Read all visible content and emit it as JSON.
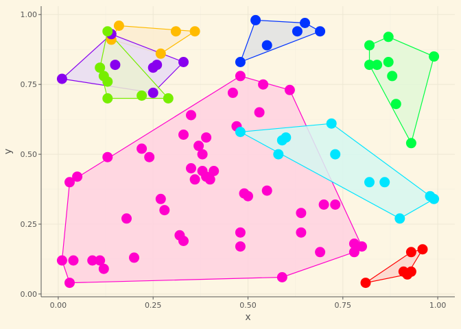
{
  "chart_data": {
    "type": "scatter",
    "title": "",
    "xlabel": "x",
    "ylabel": "y",
    "xlim": [
      -0.045,
      1.045
    ],
    "ylim": [
      -0.01,
      1.03
    ],
    "x_ticks": [
      0,
      0.25,
      0.5,
      0.75,
      1
    ],
    "x_tick_labels": [
      "0.00",
      "0.25",
      "0.50",
      "0.75",
      "1.00"
    ],
    "y_ticks": [
      0,
      0.25,
      0.5,
      0.75,
      1
    ],
    "y_tick_labels": [
      "0.00",
      "0.25",
      "0.50",
      "0.75",
      "1.00"
    ],
    "grid": true,
    "legend": "none",
    "series": [
      {
        "color": "#ff00cc",
        "fill": "#ffd1e0",
        "points": [
          [
            0.01,
            0.12
          ],
          [
            0.03,
            0.04
          ],
          [
            0.03,
            0.4
          ],
          [
            0.04,
            0.12
          ],
          [
            0.05,
            0.42
          ],
          [
            0.09,
            0.12
          ],
          [
            0.11,
            0.12
          ],
          [
            0.12,
            0.09
          ],
          [
            0.13,
            0.49
          ],
          [
            0.18,
            0.27
          ],
          [
            0.2,
            0.13
          ],
          [
            0.22,
            0.52
          ],
          [
            0.24,
            0.49
          ],
          [
            0.27,
            0.34
          ],
          [
            0.28,
            0.3
          ],
          [
            0.32,
            0.21
          ],
          [
            0.33,
            0.19
          ],
          [
            0.33,
            0.57
          ],
          [
            0.35,
            0.45
          ],
          [
            0.35,
            0.64
          ],
          [
            0.36,
            0.41
          ],
          [
            0.37,
            0.53
          ],
          [
            0.38,
            0.44
          ],
          [
            0.38,
            0.5
          ],
          [
            0.39,
            0.56
          ],
          [
            0.39,
            0.42
          ],
          [
            0.4,
            0.41
          ],
          [
            0.41,
            0.44
          ],
          [
            0.46,
            0.72
          ],
          [
            0.47,
            0.6
          ],
          [
            0.48,
            0.17
          ],
          [
            0.48,
            0.22
          ],
          [
            0.48,
            0.78
          ],
          [
            0.49,
            0.36
          ],
          [
            0.5,
            0.35
          ],
          [
            0.53,
            0.65
          ],
          [
            0.54,
            0.75
          ],
          [
            0.55,
            0.37
          ],
          [
            0.59,
            0.06
          ],
          [
            0.61,
            0.73
          ],
          [
            0.64,
            0.29
          ],
          [
            0.64,
            0.22
          ],
          [
            0.69,
            0.15
          ],
          [
            0.7,
            0.32
          ],
          [
            0.73,
            0.32
          ],
          [
            0.78,
            0.18
          ],
          [
            0.78,
            0.15
          ],
          [
            0.8,
            0.17
          ]
        ],
        "hull": [
          [
            0.01,
            0.12
          ],
          [
            0.03,
            0.04
          ],
          [
            0.59,
            0.06
          ],
          [
            0.78,
            0.15
          ],
          [
            0.8,
            0.17
          ],
          [
            0.61,
            0.73
          ],
          [
            0.48,
            0.78
          ],
          [
            0.03,
            0.4
          ]
        ]
      },
      {
        "color": "#00e5ff",
        "fill": "#d6f7f0",
        "points": [
          [
            0.48,
            0.58
          ],
          [
            0.58,
            0.5
          ],
          [
            0.59,
            0.55
          ],
          [
            0.6,
            0.56
          ],
          [
            0.72,
            0.61
          ],
          [
            0.73,
            0.5
          ],
          [
            0.82,
            0.4
          ],
          [
            0.86,
            0.4
          ],
          [
            0.9,
            0.27
          ],
          [
            0.98,
            0.35
          ],
          [
            0.99,
            0.34
          ]
        ],
        "hull": [
          [
            0.48,
            0.58
          ],
          [
            0.9,
            0.27
          ],
          [
            0.99,
            0.34
          ],
          [
            0.72,
            0.61
          ]
        ]
      },
      {
        "color": "#00ff44",
        "fill": "#e2f8d7",
        "points": [
          [
            0.82,
            0.89
          ],
          [
            0.82,
            0.82
          ],
          [
            0.84,
            0.82
          ],
          [
            0.87,
            0.83
          ],
          [
            0.87,
            0.92
          ],
          [
            0.88,
            0.78
          ],
          [
            0.89,
            0.68
          ],
          [
            0.93,
            0.54
          ],
          [
            0.99,
            0.85
          ]
        ],
        "hull": [
          [
            0.82,
            0.89
          ],
          [
            0.82,
            0.82
          ],
          [
            0.93,
            0.54
          ],
          [
            0.99,
            0.85
          ],
          [
            0.87,
            0.92
          ]
        ]
      },
      {
        "color": "#0033ff",
        "fill": "#e1e2e3",
        "points": [
          [
            0.48,
            0.83
          ],
          [
            0.52,
            0.98
          ],
          [
            0.55,
            0.89
          ],
          [
            0.63,
            0.94
          ],
          [
            0.65,
            0.97
          ],
          [
            0.69,
            0.94
          ]
        ],
        "hull": [
          [
            0.48,
            0.83
          ],
          [
            0.52,
            0.98
          ],
          [
            0.65,
            0.97
          ],
          [
            0.69,
            0.94
          ]
        ]
      },
      {
        "color": "#ff0000",
        "fill": "#fbd6cc",
        "points": [
          [
            0.81,
            0.04
          ],
          [
            0.91,
            0.08
          ],
          [
            0.92,
            0.07
          ],
          [
            0.93,
            0.08
          ],
          [
            0.93,
            0.15
          ],
          [
            0.96,
            0.16
          ]
        ],
        "hull": [
          [
            0.81,
            0.04
          ],
          [
            0.92,
            0.07
          ],
          [
            0.96,
            0.16
          ],
          [
            0.93,
            0.15
          ]
        ]
      },
      {
        "color": "#ffbb00",
        "fill": "#fbecd0",
        "points": [
          [
            0.14,
            0.91
          ],
          [
            0.16,
            0.96
          ],
          [
            0.27,
            0.86
          ],
          [
            0.31,
            0.94
          ],
          [
            0.36,
            0.94
          ]
        ],
        "hull": [
          [
            0.14,
            0.91
          ],
          [
            0.16,
            0.96
          ],
          [
            0.36,
            0.94
          ],
          [
            0.27,
            0.86
          ]
        ]
      },
      {
        "color": "#8800ee",
        "fill": "#e8dcf3",
        "points": [
          [
            0.01,
            0.77
          ],
          [
            0.14,
            0.93
          ],
          [
            0.15,
            0.82
          ],
          [
            0.25,
            0.72
          ],
          [
            0.25,
            0.81
          ],
          [
            0.26,
            0.82
          ],
          [
            0.33,
            0.83
          ]
        ],
        "hull": [
          [
            0.01,
            0.77
          ],
          [
            0.25,
            0.72
          ],
          [
            0.33,
            0.83
          ],
          [
            0.14,
            0.93
          ]
        ]
      },
      {
        "color": "#77ee00",
        "fill": "#ebf0d2",
        "points": [
          [
            0.11,
            0.81
          ],
          [
            0.12,
            0.78
          ],
          [
            0.13,
            0.94
          ],
          [
            0.13,
            0.76
          ],
          [
            0.13,
            0.7
          ],
          [
            0.22,
            0.71
          ],
          [
            0.29,
            0.7
          ]
        ],
        "hull": [
          [
            0.11,
            0.81
          ],
          [
            0.13,
            0.7
          ],
          [
            0.29,
            0.7
          ],
          [
            0.13,
            0.94
          ]
        ]
      }
    ]
  }
}
